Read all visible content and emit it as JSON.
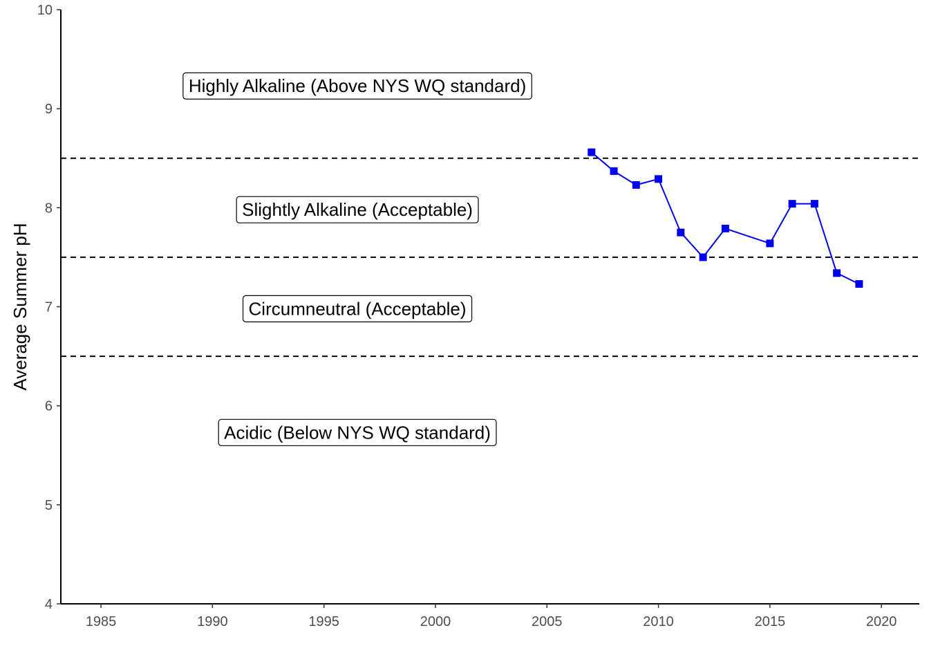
{
  "chart_data": {
    "type": "line",
    "title": "",
    "xlabel": "",
    "ylabel": "Average Summer pH",
    "xlim": [
      1983.2,
      2021.7
    ],
    "ylim": [
      4,
      10
    ],
    "x_ticks": [
      1985,
      1990,
      1995,
      2000,
      2005,
      2010,
      2015,
      2020
    ],
    "y_ticks": [
      4,
      5,
      6,
      7,
      8,
      9,
      10
    ],
    "grid": false,
    "legend": "none",
    "series": [
      {
        "color": "#0000ee",
        "marker": "square",
        "points": [
          {
            "x": 2007,
            "y": 8.56
          },
          {
            "x": 2008,
            "y": 8.37
          },
          {
            "x": 2009,
            "y": 8.23
          },
          {
            "x": 2010,
            "y": 8.29
          },
          {
            "x": 2011,
            "y": 7.75
          },
          {
            "x": 2012,
            "y": 7.5
          },
          {
            "x": 2013,
            "y": 7.79
          },
          {
            "x": 2015,
            "y": 7.64
          },
          {
            "x": 2016,
            "y": 8.04
          },
          {
            "x": 2017,
            "y": 8.04
          },
          {
            "x": 2018,
            "y": 7.34
          },
          {
            "x": 2019,
            "y": 7.23
          }
        ]
      }
    ],
    "reference_lines": [
      {
        "y": 8.5,
        "style": "dashed"
      },
      {
        "y": 7.5,
        "style": "dashed"
      },
      {
        "y": 6.5,
        "style": "dashed"
      }
    ],
    "annotations": [
      {
        "text": "Highly Alkaline (Above NYS WQ standard)",
        "x": 1996.5,
        "y": 9.23
      },
      {
        "text": "Slightly Alkaline (Acceptable)",
        "x": 1996.5,
        "y": 7.98
      },
      {
        "text": "Circumneutral (Acceptable)",
        "x": 1996.5,
        "y": 6.98
      },
      {
        "text": "Acidic (Below NYS WQ standard)",
        "x": 1996.5,
        "y": 5.73
      }
    ]
  }
}
